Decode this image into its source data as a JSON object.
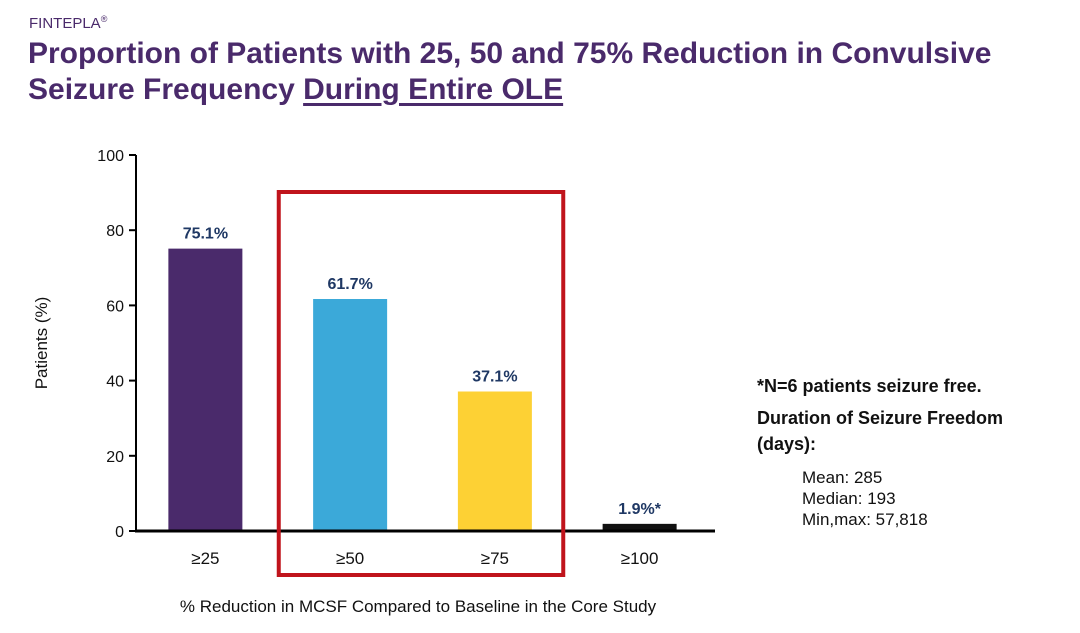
{
  "header": {
    "brand": "FINTEPLA",
    "brand_mark": "®",
    "title_line1": "Proportion of Patients with 25, 50 and 75% Reduction in Convulsive",
    "title_line2_plain": "Seizure Frequency ",
    "title_line2_underlined": "During Entire OLE"
  },
  "chart_data": {
    "type": "bar",
    "categories": [
      "≥25",
      "≥50",
      "≥75",
      "≥100"
    ],
    "values": [
      75.1,
      61.7,
      37.1,
      1.9
    ],
    "data_labels": [
      "75.1%",
      "61.7%",
      "37.1%",
      "1.9%*"
    ],
    "colors": [
      "#4a2a6b",
      "#3ba9d9",
      "#fdd134",
      "#111111"
    ],
    "xlabel": "% Reduction in MCSF Compared to Baseline in the Core Study",
    "ylabel": "Patients (%)",
    "ylim": [
      0,
      100
    ],
    "yticks": [
      0,
      20,
      40,
      60,
      80,
      100
    ],
    "grid": false,
    "highlight": {
      "categories": [
        "≥50",
        "≥75"
      ],
      "color": "#c0141c"
    },
    "label_color": "#1f3864"
  },
  "notes": {
    "seizure_free": "*N=6 patients seizure free.",
    "duration_heading": "Duration of Seizure Freedom (days):",
    "mean": "Mean: 285",
    "median": "Median: 193",
    "minmax": "Min,max: 57,818"
  }
}
